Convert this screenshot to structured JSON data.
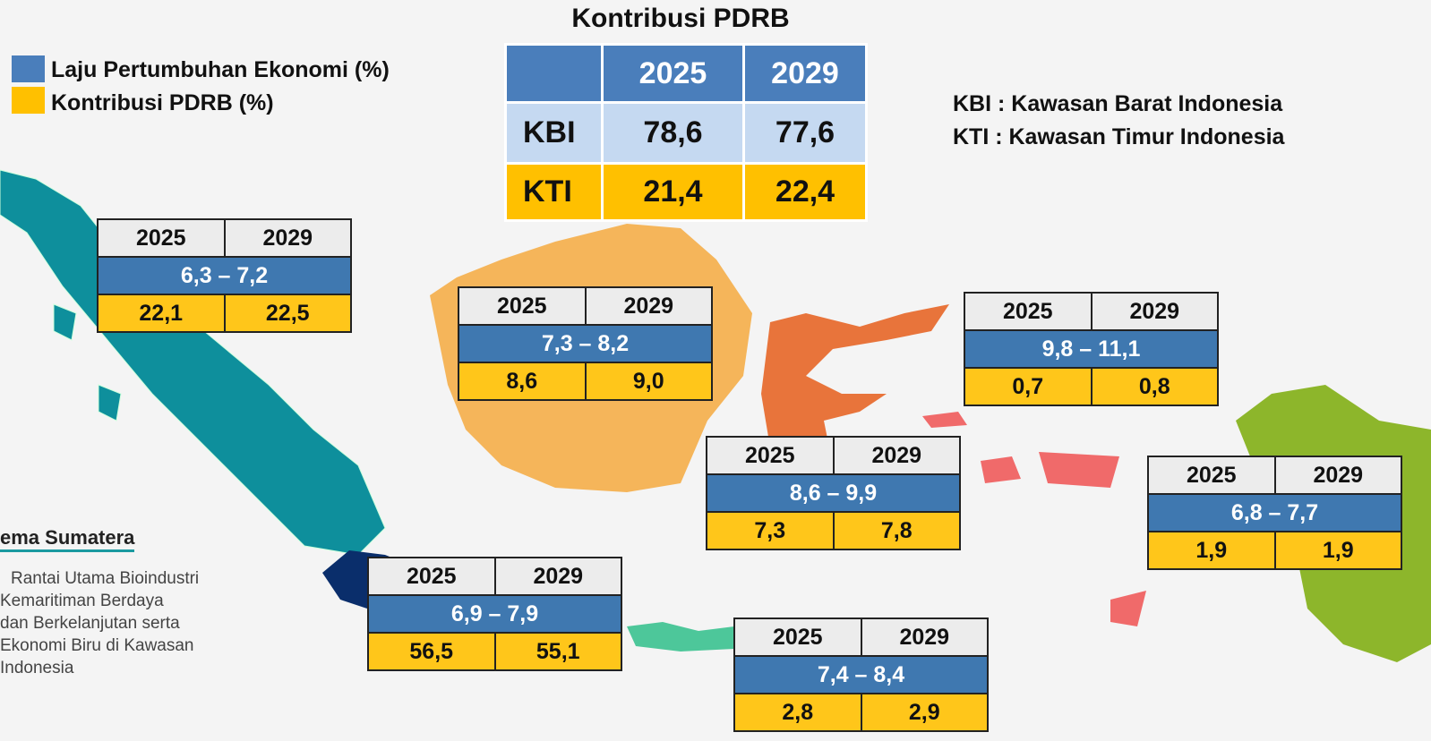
{
  "title": "Kontribusi PDRB",
  "legend": [
    {
      "label": "Laju Pertumbuhan Ekonomi (%)",
      "color": "#4a7ebb"
    },
    {
      "label": "Kontribusi PDRB (%)",
      "color": "#ffc000"
    }
  ],
  "table": {
    "header": [
      "2025",
      "2029"
    ],
    "rows": [
      [
        "KBI",
        "78,6",
        "77,6"
      ],
      [
        "KTI",
        "21,4",
        "22,4"
      ]
    ]
  },
  "notes": [
    "KBI : Kawasan Barat Indonesia",
    "KTI : Kawasan Timur Indonesia"
  ],
  "side_text": {
    "heading": "ema Sumatera",
    "lines": [
      "Rantai Utama Bioindustri",
      "Kemaritiman Berdaya",
      "dan Berkelanjutan serta",
      "Ekonomi Biru di Kawasan",
      "Indonesia"
    ]
  },
  "regions": [
    {
      "years": [
        "2025",
        "2029"
      ],
      "growth": "6,3 – 7,2",
      "contribution": [
        "22,1",
        "22,5"
      ]
    },
    {
      "years": [
        "2025",
        "2029"
      ],
      "growth": "7,3 – 8,2",
      "contribution": [
        "8,6",
        "9,0"
      ]
    },
    {
      "years": [
        "2025",
        "2029"
      ],
      "growth": "6,9 – 7,9",
      "contribution": [
        "56,5",
        "55,1"
      ]
    },
    {
      "years": [
        "2025",
        "2029"
      ],
      "growth": "8,6 – 9,9",
      "contribution": [
        "7,3",
        "7,8"
      ]
    },
    {
      "years": [
        "2025",
        "2029"
      ],
      "growth": "9,8 – 11,1",
      "contribution": [
        "0,7",
        "0,8"
      ]
    },
    {
      "years": [
        "2025",
        "2029"
      ],
      "growth": "6,8 – 7,7",
      "contribution": [
        "1,9",
        "1,9"
      ]
    },
    {
      "years": [
        "2025",
        "2029"
      ],
      "growth": "7,4 – 8,4",
      "contribution": [
        "2,8",
        "2,9"
      ]
    }
  ]
}
